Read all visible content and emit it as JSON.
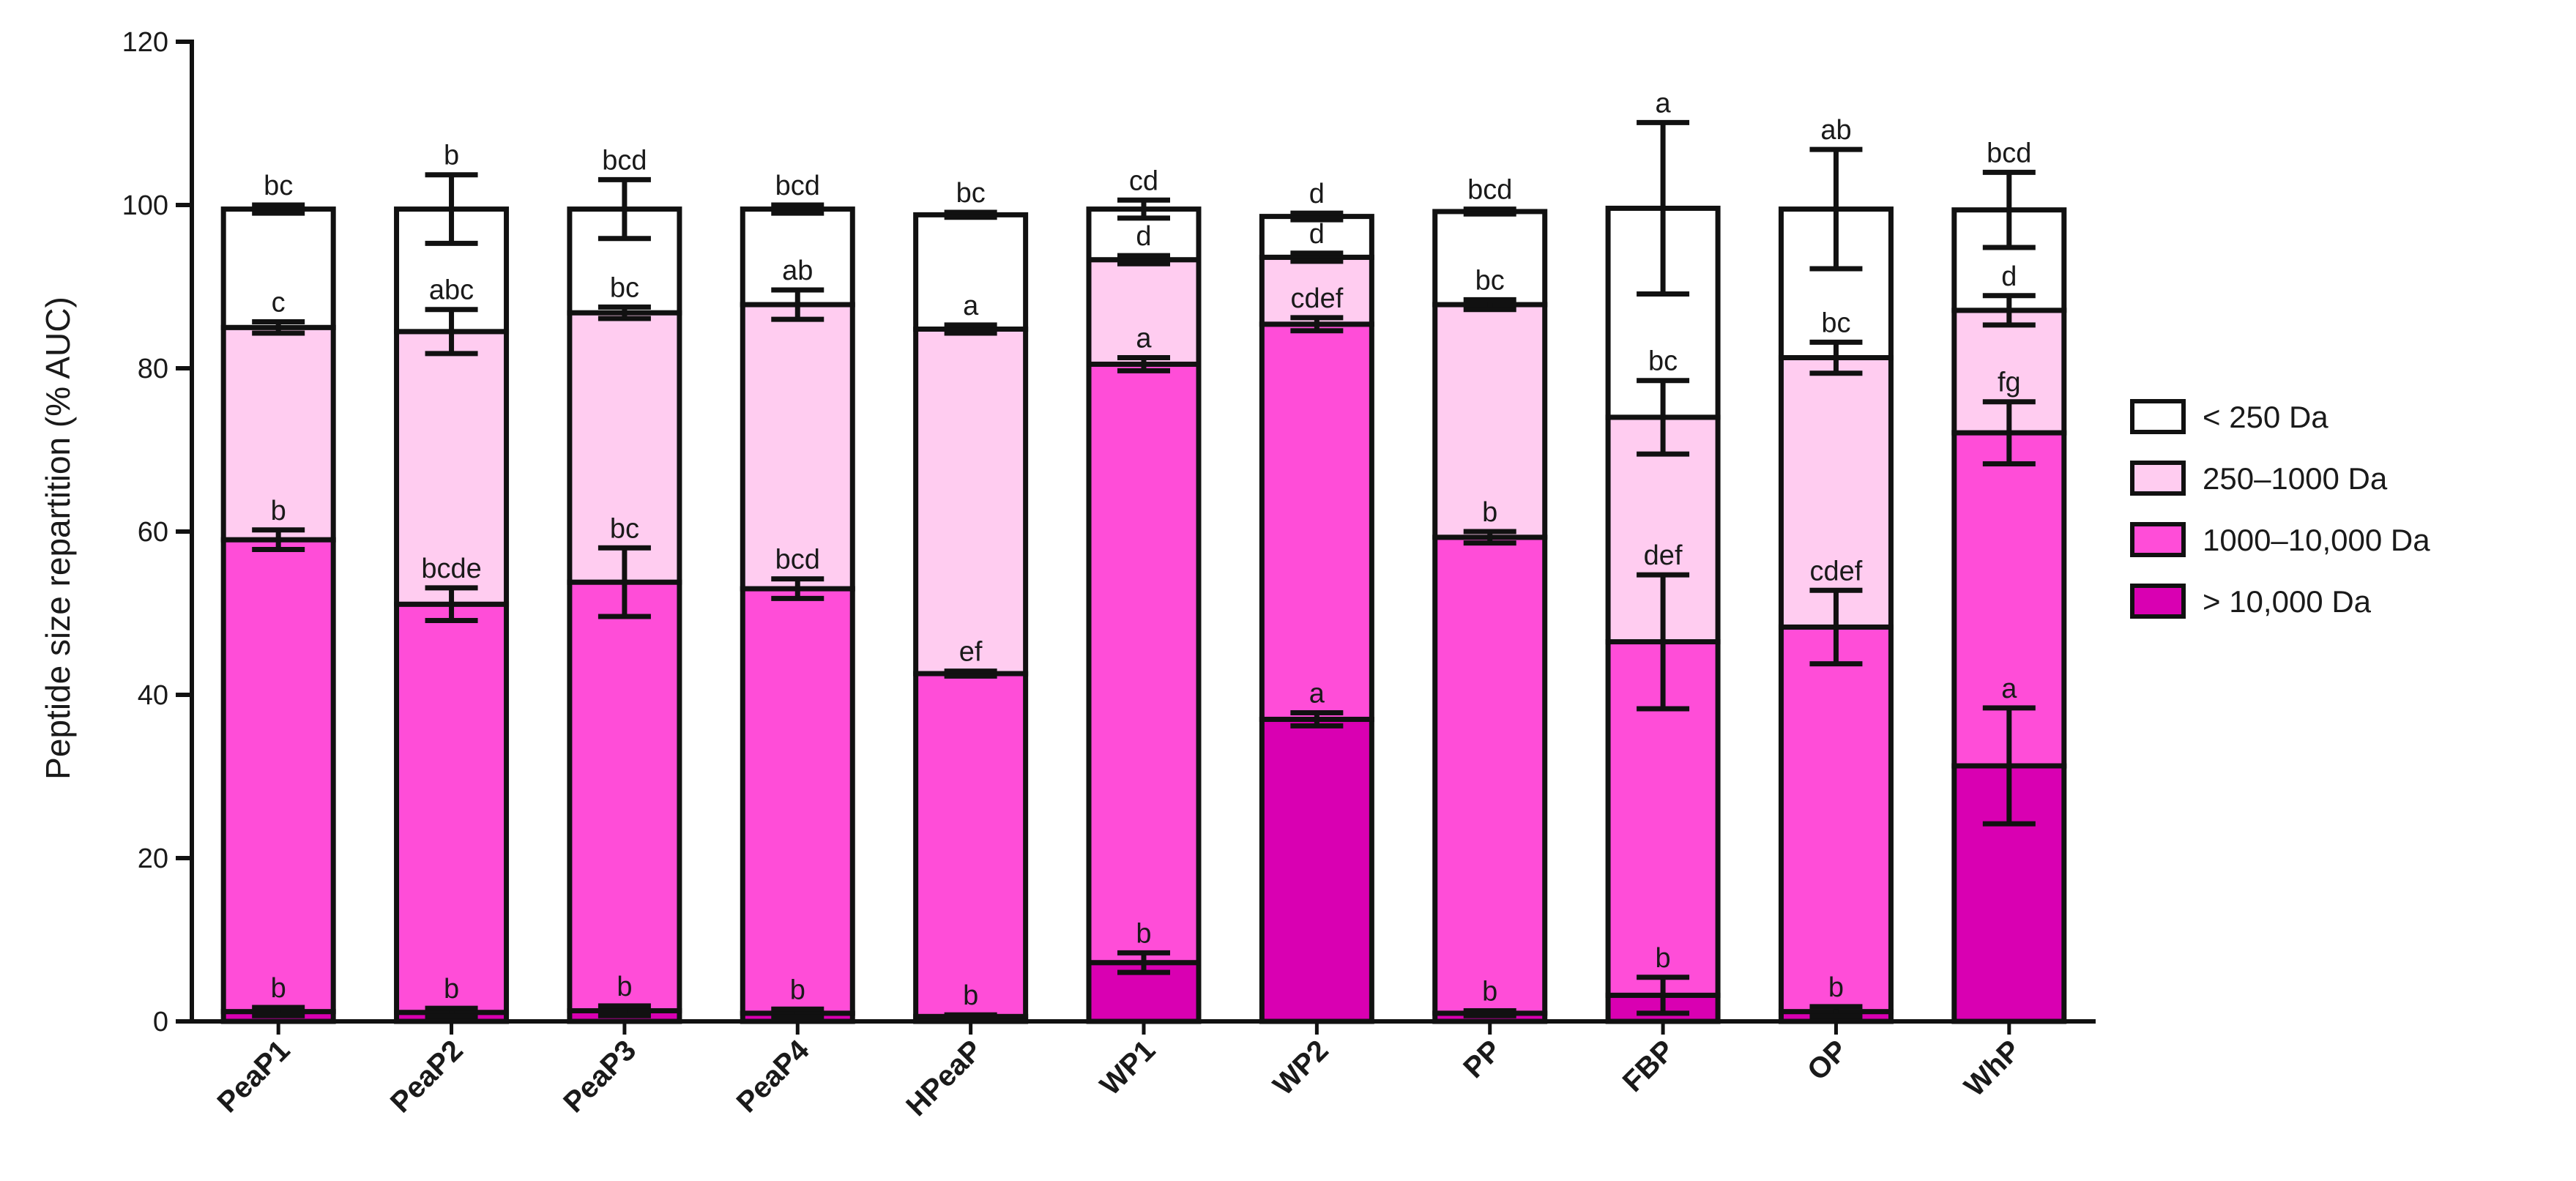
{
  "chart_data": {
    "type": "bar",
    "stacked": true,
    "title": "",
    "xlabel": "",
    "ylabel": "Peptide size repartition (% AUC)",
    "ylim": [
      0,
      120
    ],
    "yticks": [
      0,
      20,
      40,
      60,
      80,
      100,
      120
    ],
    "grid": false,
    "legend_position": "right",
    "categories": [
      "PeaP1",
      "PeaP2",
      "PeaP3",
      "PeaP4",
      "HPeaP",
      "WP1",
      "WP2",
      "PP",
      "FBP",
      "OP",
      "WhP"
    ],
    "series": [
      {
        "name": "> 10,000 Da",
        "color": "#d900b2",
        "values": [
          1.2,
          1.1,
          1.3,
          1.0,
          0.6,
          7.2,
          37.0,
          1.0,
          3.2,
          1.2,
          31.3
        ],
        "errors": [
          0.5,
          0.5,
          0.6,
          0.5,
          0.2,
          1.2,
          0.8,
          0.3,
          2.2,
          0.6,
          7.1
        ],
        "labels": [
          "b",
          "b",
          "b",
          "b",
          "b",
          "b",
          "a",
          "b",
          "b",
          "b",
          "a"
        ]
      },
      {
        "name": "1000–10,000 Da",
        "color": "#ff4dd8",
        "values": [
          57.8,
          50.0,
          52.5,
          52.0,
          42.0,
          73.3,
          48.4,
          58.3,
          43.3,
          47.1,
          40.8
        ],
        "errors": [
          1.2,
          2.0,
          4.2,
          1.2,
          0.3,
          0.8,
          0.8,
          0.7,
          8.2,
          4.5,
          3.8
        ],
        "labels": [
          "b",
          "bcde",
          "bc",
          "bcd",
          "ef",
          "a",
          "cdef",
          "b",
          "def",
          "cdef",
          "fg"
        ]
      },
      {
        "name": "250–1000 Da",
        "color": "#ffccf0",
        "values": [
          26.0,
          33.4,
          33.0,
          34.8,
          42.2,
          12.8,
          8.2,
          28.5,
          27.5,
          33.0,
          15.0
        ],
        "errors": [
          0.7,
          2.7,
          0.7,
          1.8,
          0.5,
          0.5,
          0.5,
          0.6,
          4.5,
          1.9,
          1.8
        ],
        "labels": [
          "c",
          "abc",
          "bc",
          "ab",
          "a",
          "d",
          "d",
          "bc",
          "bc",
          "bc",
          "d"
        ]
      },
      {
        "name": "< 250 Da",
        "color": "#ffffff",
        "values": [
          14.5,
          15.0,
          12.7,
          11.7,
          14.0,
          6.2,
          5.0,
          11.4,
          25.6,
          18.2,
          12.3
        ],
        "errors": [
          0.5,
          4.2,
          3.6,
          0.5,
          0.3,
          1.1,
          0.4,
          0.3,
          10.5,
          7.3,
          4.6
        ],
        "labels": [
          "bc",
          "b",
          "bcd",
          "bcd",
          "bc",
          "cd",
          "d",
          "bcd",
          "a",
          "ab",
          "bcd"
        ]
      }
    ]
  }
}
